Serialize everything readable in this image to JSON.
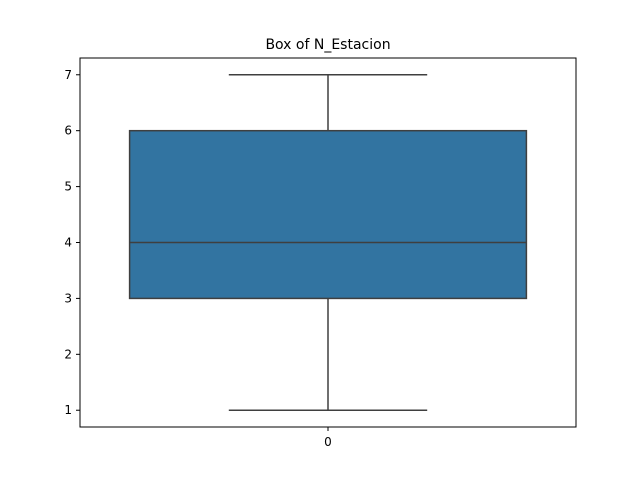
{
  "chart_data": {
    "type": "box",
    "title": "Box of N_Estacion",
    "xlabel": "",
    "ylabel": "",
    "categories": [
      "0"
    ],
    "ylim": [
      0.7,
      7.3
    ],
    "y_ticks": [
      1,
      2,
      3,
      4,
      5,
      6,
      7
    ],
    "grid": false,
    "legend": "none",
    "boxes": [
      {
        "category": "0",
        "whisker_low": 1,
        "q1": 3,
        "median": 4,
        "q3": 6,
        "whisker_high": 7
      }
    ],
    "colors": {
      "box_fill": "#3274a1",
      "line": "#3f3f3f",
      "axes": "#000000"
    }
  }
}
